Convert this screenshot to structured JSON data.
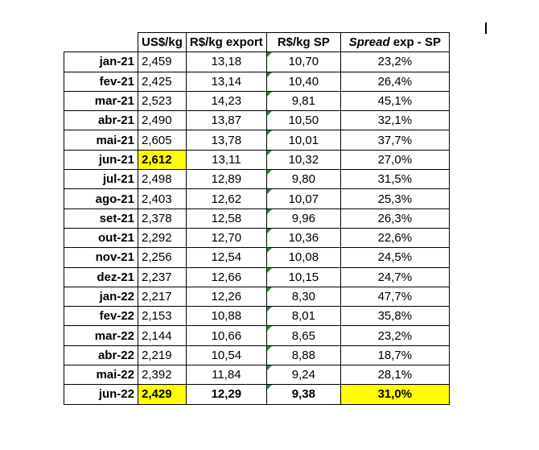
{
  "headers": {
    "usd": "US$/kg",
    "rexp": "R$/kg export",
    "rsp": "R$/kg SP",
    "spread_italic": "Spread",
    "spread_rest": " exp - SP"
  },
  "rows": [
    {
      "month": "jan-21",
      "usd": "2,459",
      "rexp": "13,18",
      "rsp": "10,70",
      "spread": "23,2%"
    },
    {
      "month": "fev-21",
      "usd": "2,425",
      "rexp": "13,14",
      "rsp": "10,40",
      "spread": "26,4%"
    },
    {
      "month": "mar-21",
      "usd": "2,523",
      "rexp": "14,23",
      "rsp": "9,81",
      "spread": "45,1%"
    },
    {
      "month": "abr-21",
      "usd": "2,490",
      "rexp": "13,87",
      "rsp": "10,50",
      "spread": "32,1%"
    },
    {
      "month": "mai-21",
      "usd": "2,605",
      "rexp": "13,78",
      "rsp": "10,01",
      "spread": "37,7%"
    },
    {
      "month": "jun-21",
      "usd": "2,612",
      "rexp": "13,11",
      "rsp": "10,32",
      "spread": "27,0%"
    },
    {
      "month": "jul-21",
      "usd": "2,498",
      "rexp": "12,89",
      "rsp": "9,80",
      "spread": "31,5%"
    },
    {
      "month": "ago-21",
      "usd": "2,403",
      "rexp": "12,62",
      "rsp": "10,07",
      "spread": "25,3%"
    },
    {
      "month": "set-21",
      "usd": "2,378",
      "rexp": "12,58",
      "rsp": "9,96",
      "spread": "26,3%"
    },
    {
      "month": "out-21",
      "usd": "2,292",
      "rexp": "12,70",
      "rsp": "10,36",
      "spread": "22,6%"
    },
    {
      "month": "nov-21",
      "usd": "2,256",
      "rexp": "12,54",
      "rsp": "10,08",
      "spread": "24,5%"
    },
    {
      "month": "dez-21",
      "usd": "2,237",
      "rexp": "12,66",
      "rsp": "10,15",
      "spread": "24,7%"
    },
    {
      "month": "jan-22",
      "usd": "2,217",
      "rexp": "12,26",
      "rsp": "8,30",
      "spread": "47,7%"
    },
    {
      "month": "fev-22",
      "usd": "2,153",
      "rexp": "10,88",
      "rsp": "8,01",
      "spread": "35,8%"
    },
    {
      "month": "mar-22",
      "usd": "2,144",
      "rexp": "10,66",
      "rsp": "8,65",
      "spread": "23,2%"
    },
    {
      "month": "abr-22",
      "usd": "2,219",
      "rexp": "10,54",
      "rsp": "8,88",
      "spread": "18,7%"
    },
    {
      "month": "mai-22",
      "usd": "2,392",
      "rexp": "11,84",
      "rsp": "9,24",
      "spread": "28,1%"
    },
    {
      "month": "jun-22",
      "usd": "2,429",
      "rexp": "12,29",
      "rsp": "9,38",
      "spread": "31,0%"
    }
  ],
  "highlight_color": "#ffff00",
  "comment_marker_color": "#2e8b2e"
}
